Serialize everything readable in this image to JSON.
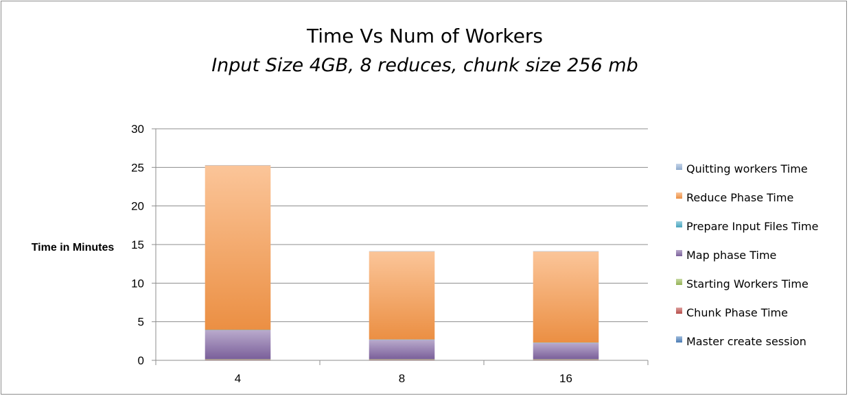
{
  "chart_data": {
    "type": "bar",
    "stacked": true,
    "title": "Time Vs Num of Workers",
    "subtitle": "Input Size 4GB, 8 reduces, chunk size 256 mb",
    "xlabel": "",
    "ylabel": "Time in Minutes",
    "ylim": [
      0,
      30
    ],
    "yticks": [
      "0",
      "5",
      "10",
      "15",
      "20",
      "25",
      "30"
    ],
    "grid": true,
    "legend_position": "right",
    "categories": [
      "4",
      "8",
      "16"
    ],
    "series": [
      {
        "name": "Master create session",
        "color": "#4f81bd",
        "values": [
          0.05,
          0.05,
          0.05
        ]
      },
      {
        "name": "Chunk Phase Time",
        "color": "#c0504d",
        "values": [
          0.05,
          0.05,
          0.05
        ]
      },
      {
        "name": "Starting Workers Time",
        "color": "#9bbb59",
        "values": [
          0.05,
          0.05,
          0.05
        ]
      },
      {
        "name": "Map phase Time",
        "color": "#8064a2",
        "values": [
          3.75,
          2.5,
          2.1
        ]
      },
      {
        "name": "Prepare Input Files Time",
        "color": "#4bacc6",
        "values": [
          0.05,
          0.05,
          0.05
        ]
      },
      {
        "name": "Reduce Phase Time",
        "color": "#f79646",
        "values": [
          21.3,
          11.4,
          11.8
        ]
      },
      {
        "name": "Quitting workers Time",
        "color": "#95b3d7",
        "values": [
          0.05,
          0.05,
          0.05
        ]
      }
    ]
  }
}
